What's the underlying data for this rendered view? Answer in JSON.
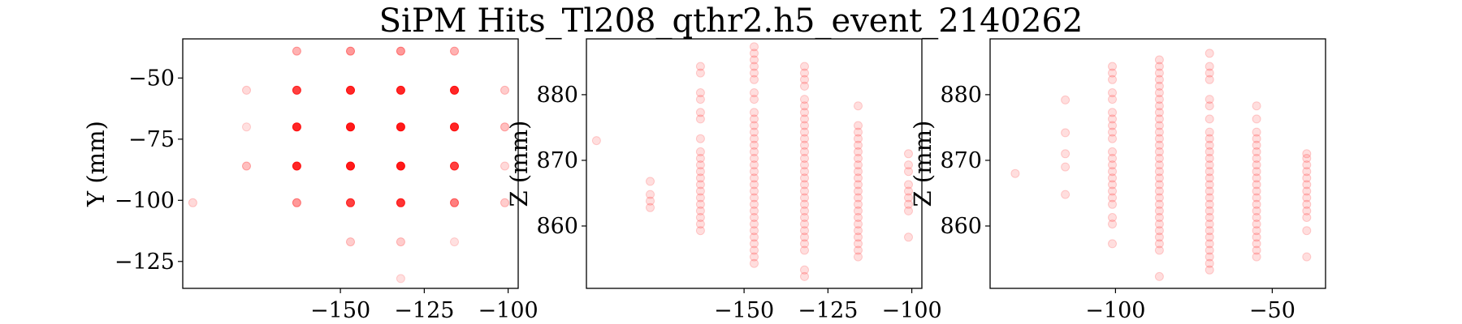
{
  "title": "SiPM Hits_Tl208_qthr2.h5_event_2140262",
  "point_color": "#ff0000",
  "chart_data": [
    {
      "type": "scatter",
      "title": "",
      "xlabel": "",
      "ylabel": "Y (mm)",
      "xlim": [
        -197,
        -97
      ],
      "ylim": [
        -136,
        -34
      ],
      "xticks": [
        -150,
        -125,
        -100
      ],
      "yticks": [
        -50,
        -75,
        -100,
        -125
      ],
      "points": [
        [
          -163,
          -39,
          0.3
        ],
        [
          -147,
          -39,
          0.4
        ],
        [
          -132,
          -39,
          0.4
        ],
        [
          -116,
          -39,
          0.3
        ],
        [
          -178,
          -55,
          0.15
        ],
        [
          -163,
          -55,
          0.75
        ],
        [
          -147,
          -55,
          0.85
        ],
        [
          -132,
          -55,
          0.85
        ],
        [
          -116,
          -55,
          0.85
        ],
        [
          -101,
          -55,
          0.2
        ],
        [
          -178,
          -70,
          0.12
        ],
        [
          -163,
          -70,
          0.85
        ],
        [
          -147,
          -70,
          0.9
        ],
        [
          -132,
          -70,
          0.9
        ],
        [
          -116,
          -70,
          0.85
        ],
        [
          -101,
          -70,
          0.25
        ],
        [
          -178,
          -86,
          0.25
        ],
        [
          -163,
          -86,
          0.85
        ],
        [
          -147,
          -86,
          0.9
        ],
        [
          -132,
          -86,
          0.9
        ],
        [
          -116,
          -86,
          0.75
        ],
        [
          -101,
          -86,
          0.15
        ],
        [
          -194,
          -101,
          0.15
        ],
        [
          -163,
          -101,
          0.4
        ],
        [
          -147,
          -101,
          0.75
        ],
        [
          -132,
          -101,
          0.8
        ],
        [
          -116,
          -101,
          0.5
        ],
        [
          -101,
          -101,
          0.2
        ],
        [
          -147,
          -117,
          0.2
        ],
        [
          -132,
          -117,
          0.2
        ],
        [
          -116,
          -117,
          0.12
        ],
        [
          -132,
          -132,
          0.12
        ]
      ]
    },
    {
      "type": "scatter",
      "title": "",
      "xlabel": "",
      "ylabel": "Z (mm)",
      "xlim": [
        -197,
        -97
      ],
      "ylim": [
        850.5,
        888.5
      ],
      "xticks": [
        -150,
        -125,
        -100
      ],
      "yticks": [
        880,
        870,
        860
      ],
      "columns": [
        {
          "x": -194,
          "z": [
            873
          ]
        },
        {
          "x": -178,
          "z": [
            862.8,
            863.8,
            864.8,
            866.8
          ]
        },
        {
          "x": -163,
          "z": [
            859.3,
            860.3,
            861.3,
            862.3,
            863.3,
            864.3,
            865.3,
            866.3,
            867.3,
            868.3,
            869.3,
            870.3,
            871.3,
            873.3,
            876.3,
            877.3,
            879.3,
            880.3,
            883.3,
            884.3
          ]
        },
        {
          "x": -147,
          "z": [
            854.3,
            855.3,
            856.3,
            857.3,
            858.3,
            859.3,
            860.3,
            861.3,
            862.3,
            863.3,
            864.3,
            865.3,
            866.3,
            867.3,
            868.3,
            869.3,
            870.3,
            871.3,
            872.3,
            873.3,
            874.3,
            875.3,
            876.3,
            877.3,
            879.3,
            880.3,
            882.3,
            883.3,
            884.3,
            885.3,
            886.3,
            887.3
          ]
        },
        {
          "x": -132,
          "z": [
            852.3,
            853.3,
            856.3,
            857.3,
            858.3,
            859.3,
            860.3,
            861.3,
            862.3,
            863.3,
            864.3,
            865.3,
            866.3,
            867.3,
            868.3,
            869.3,
            870.3,
            871.3,
            872.3,
            873.3,
            874.3,
            875.3,
            876.3,
            877.3,
            878.3,
            879.3,
            881.3,
            882.3,
            883.3,
            884.3
          ]
        },
        {
          "x": -116,
          "z": [
            855.3,
            856.3,
            857.3,
            858.3,
            859.3,
            860.3,
            861.3,
            862.3,
            863.3,
            864.3,
            865.3,
            866.3,
            867.3,
            868.3,
            869.3,
            870.3,
            871.3,
            872.3,
            873.3,
            874.3,
            875.3,
            878.3
          ]
        },
        {
          "x": -101,
          "z": [
            858.3,
            862.3,
            863.3,
            864.3,
            865.3,
            866.3,
            868.3,
            869.3,
            871
          ]
        }
      ]
    },
    {
      "type": "scatter",
      "title": "",
      "xlabel": "",
      "ylabel": "Z (mm)",
      "xlim": [
        -140,
        -33
      ],
      "ylim": [
        850.5,
        888.5
      ],
      "xticks": [
        -100,
        -50
      ],
      "yticks": [
        880,
        870,
        860
      ],
      "columns": [
        {
          "x": -132,
          "z": [
            868
          ]
        },
        {
          "x": -116,
          "z": [
            864.8,
            869,
            871,
            874.2,
            879.2
          ]
        },
        {
          "x": -101,
          "z": [
            857.3,
            860.3,
            861.3,
            863.3,
            864.3,
            865.3,
            866.3,
            867.3,
            868.3,
            869.3,
            870.3,
            871.3,
            873.3,
            874.3,
            875.3,
            876.3,
            877.3,
            879.3,
            880.3,
            882.3,
            883.3,
            884.3
          ]
        },
        {
          "x": -86,
          "z": [
            852.3,
            856.3,
            857.3,
            858.3,
            859.3,
            860.3,
            861.3,
            862.3,
            863.3,
            864.3,
            865.3,
            866.3,
            867.3,
            868.3,
            869.3,
            870.3,
            871.3,
            872.3,
            873.3,
            874.3,
            875.3,
            876.3,
            877.3,
            878.3,
            879.3,
            880.3,
            881.3,
            882.3,
            883.3,
            884.3,
            885.3
          ]
        },
        {
          "x": -70,
          "z": [
            853.3,
            854.3,
            855.3,
            856.3,
            857.3,
            858.3,
            859.3,
            860.3,
            861.3,
            862.3,
            863.3,
            864.3,
            865.3,
            866.3,
            867.3,
            868.3,
            869.3,
            870.3,
            871.3,
            872.3,
            873.3,
            874.3,
            876.3,
            878.3,
            879.3,
            882.3,
            883.3,
            884.3,
            886.3
          ]
        },
        {
          "x": -55,
          "z": [
            855.3,
            856.3,
            857.3,
            858.3,
            859.3,
            860.3,
            861.3,
            862.3,
            863.3,
            864.3,
            865.3,
            866.3,
            867.3,
            868.3,
            869.3,
            870.3,
            871.3,
            872.3,
            873.3,
            874.3,
            876.3,
            878.3
          ]
        },
        {
          "x": -39,
          "z": [
            855.3,
            859.3,
            861.3,
            862.3,
            863.3,
            864.3,
            865.3,
            866.3,
            867.3,
            868.3,
            869.3,
            870.3,
            871
          ]
        }
      ]
    }
  ]
}
